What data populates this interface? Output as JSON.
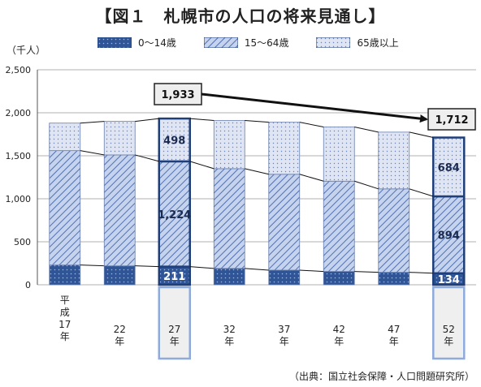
{
  "title": "【図１　札幌市の人口の将来見通し】",
  "unit_label": "（千人）",
  "source": "（出典：国立社会保障・人口問題研究所）",
  "colors": {
    "young": "#2f5597",
    "working": "#8faadc",
    "old": "#c9d3e8",
    "outline": "#1f3f7a",
    "label_bg": "#eeeeee"
  },
  "chart_data": {
    "type": "bar",
    "stacked": true,
    "categories": [
      "平成17年",
      "22年",
      "27年",
      "32年",
      "37年",
      "42年",
      "47年",
      "52年"
    ],
    "category_lines": [
      [
        "平",
        "成",
        "17",
        "年"
      ],
      [
        "22",
        "年"
      ],
      [
        "27",
        "年"
      ],
      [
        "32",
        "年"
      ],
      [
        "37",
        "年"
      ],
      [
        "42",
        "年"
      ],
      [
        "47",
        "年"
      ],
      [
        "52",
        "年"
      ]
    ],
    "series": [
      {
        "name": "0～14歳",
        "values": [
          230,
          220,
          211,
          190,
          170,
          155,
          145,
          134
        ]
      },
      {
        "name": "15～64歳",
        "values": [
          1330,
          1290,
          1224,
          1160,
          1115,
          1050,
          970,
          894
        ]
      },
      {
        "name": "65歳以上",
        "values": [
          320,
          390,
          498,
          560,
          605,
          630,
          660,
          684
        ]
      }
    ],
    "totals": [
      1880,
      1900,
      1933,
      1910,
      1890,
      1835,
      1775,
      1712
    ],
    "ylim": [
      0,
      2500
    ],
    "yticks": [
      "0",
      "500",
      "1,000",
      "1,500",
      "2,000",
      "2,500"
    ],
    "ytick_values": [
      0,
      500,
      1000,
      1500,
      2000,
      2500
    ],
    "grid": true,
    "legend_position": "top",
    "highlighted_indices": [
      2,
      7
    ],
    "data_labels": {
      "2": [
        "211",
        "1,224",
        "498"
      ],
      "7": [
        "134",
        "894",
        "684"
      ]
    },
    "total_callouts": {
      "2": "1,933",
      "7": "1,712"
    }
  }
}
